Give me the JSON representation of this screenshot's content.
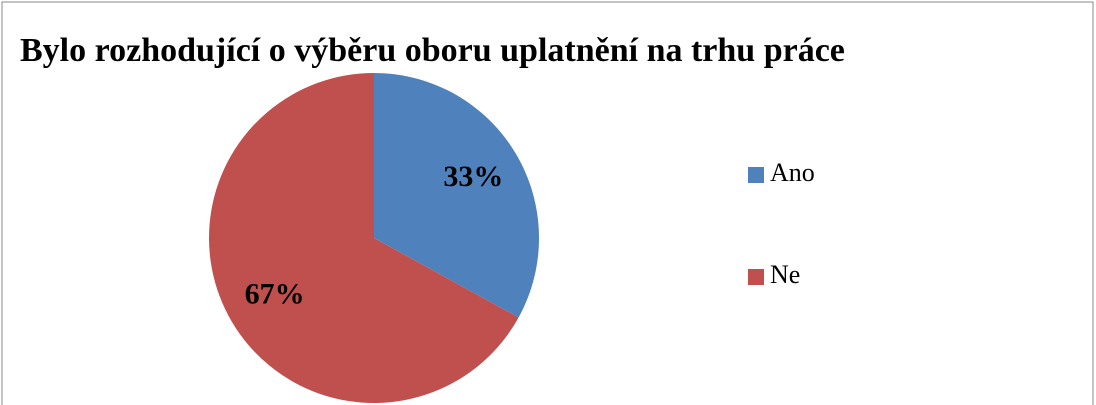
{
  "chart_data": {
    "type": "pie",
    "title": "Bylo rozhodující o výběru oboru uplatnění na trhu práce",
    "categories": [
      "Ano",
      "Ne"
    ],
    "values": [
      33,
      67
    ],
    "value_labels": [
      "33%",
      "67%"
    ],
    "colors": [
      "#4f81bd",
      "#c0504d"
    ],
    "legend": "right"
  }
}
